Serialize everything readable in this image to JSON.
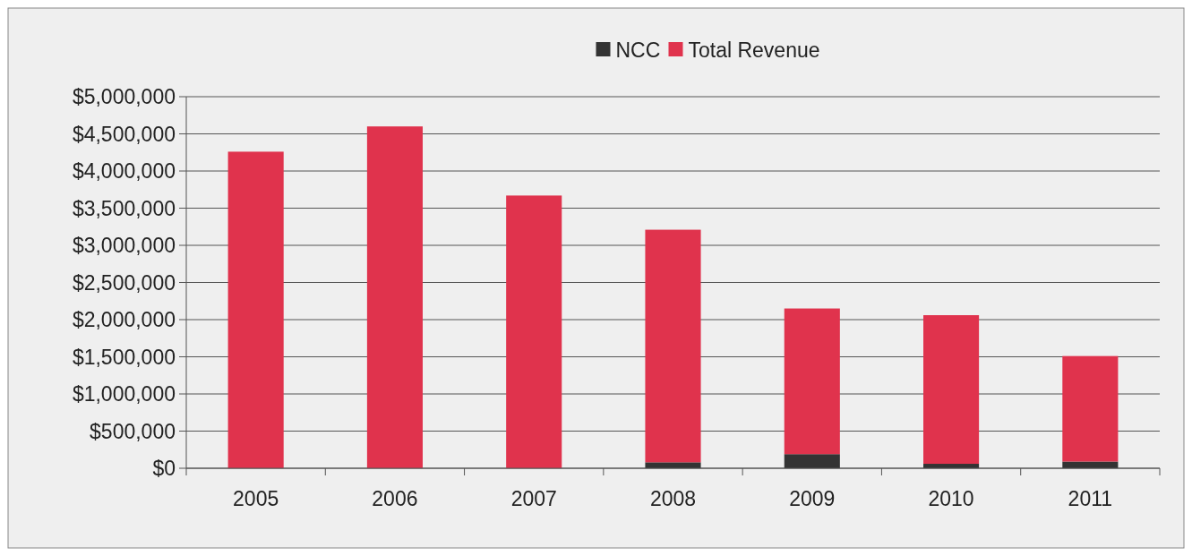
{
  "chart_data": {
    "type": "bar",
    "stacked": true,
    "categories": [
      "2005",
      "2006",
      "2007",
      "2008",
      "2009",
      "2010",
      "2011"
    ],
    "series": [
      {
        "name": "NCC",
        "color": "#333333",
        "values": [
          0,
          0,
          0,
          80000,
          190000,
          60000,
          90000
        ]
      },
      {
        "name": "Total Revenue",
        "color": "#e0334d",
        "values": [
          4260000,
          4600000,
          3670000,
          3130000,
          1960000,
          2000000,
          1420000
        ]
      }
    ],
    "ylim": [
      0,
      5000000
    ],
    "yticks": [
      {
        "value": 0,
        "label": "$0"
      },
      {
        "value": 500000,
        "label": "$500,000"
      },
      {
        "value": 1000000,
        "label": "$1,000,000"
      },
      {
        "value": 1500000,
        "label": "$1,500,000"
      },
      {
        "value": 2000000,
        "label": "$2,000,000"
      },
      {
        "value": 2500000,
        "label": "$2,500,000"
      },
      {
        "value": 3000000,
        "label": "$3,000,000"
      },
      {
        "value": 3500000,
        "label": "$3,500,000"
      },
      {
        "value": 4000000,
        "label": "$4,000,000"
      },
      {
        "value": 4500000,
        "label": "$4,500,000"
      },
      {
        "value": 5000000,
        "label": "$5,000,000"
      }
    ],
    "grid": "y",
    "legend": "top"
  }
}
